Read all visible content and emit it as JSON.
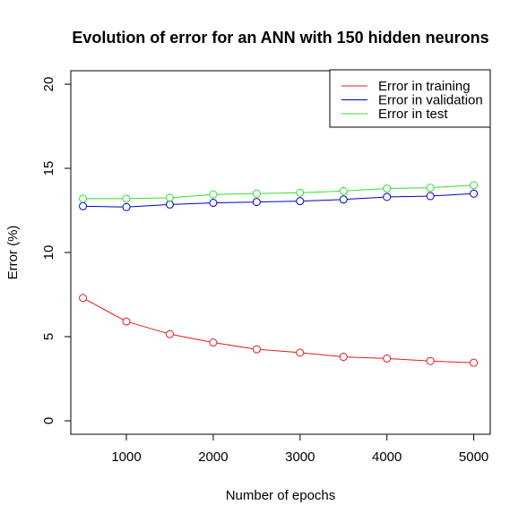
{
  "chart_data": {
    "type": "line",
    "title": "Evolution of error for an ANN with 150 hidden neurons",
    "xlabel": "Number of epochs",
    "ylabel": "Error (%)",
    "x": [
      500,
      1000,
      1500,
      2000,
      2500,
      3000,
      3500,
      4000,
      4500,
      5000
    ],
    "xlim": [
      360,
      5190
    ],
    "ylim": [
      -0.8,
      20.8
    ],
    "xticks": [
      1000,
      2000,
      3000,
      4000,
      5000
    ],
    "yticks": [
      0,
      5,
      10,
      15,
      20
    ],
    "grid": false,
    "legend_position": "top-right",
    "series": [
      {
        "name": "Error in training",
        "color": "#e41a1c",
        "marker": "open-circle",
        "values": [
          7.3,
          5.9,
          5.15,
          4.65,
          4.25,
          4.05,
          3.8,
          3.7,
          3.55,
          3.45
        ]
      },
      {
        "name": "Error in validation",
        "color": "#0000cc",
        "marker": "open-circle",
        "values": [
          12.75,
          12.7,
          12.85,
          12.95,
          13.0,
          13.05,
          13.15,
          13.3,
          13.35,
          13.5
        ]
      },
      {
        "name": "Error in test",
        "color": "#33dd33",
        "marker": "open-circle",
        "values": [
          13.2,
          13.2,
          13.25,
          13.45,
          13.5,
          13.55,
          13.65,
          13.8,
          13.85,
          14.0
        ]
      }
    ]
  }
}
